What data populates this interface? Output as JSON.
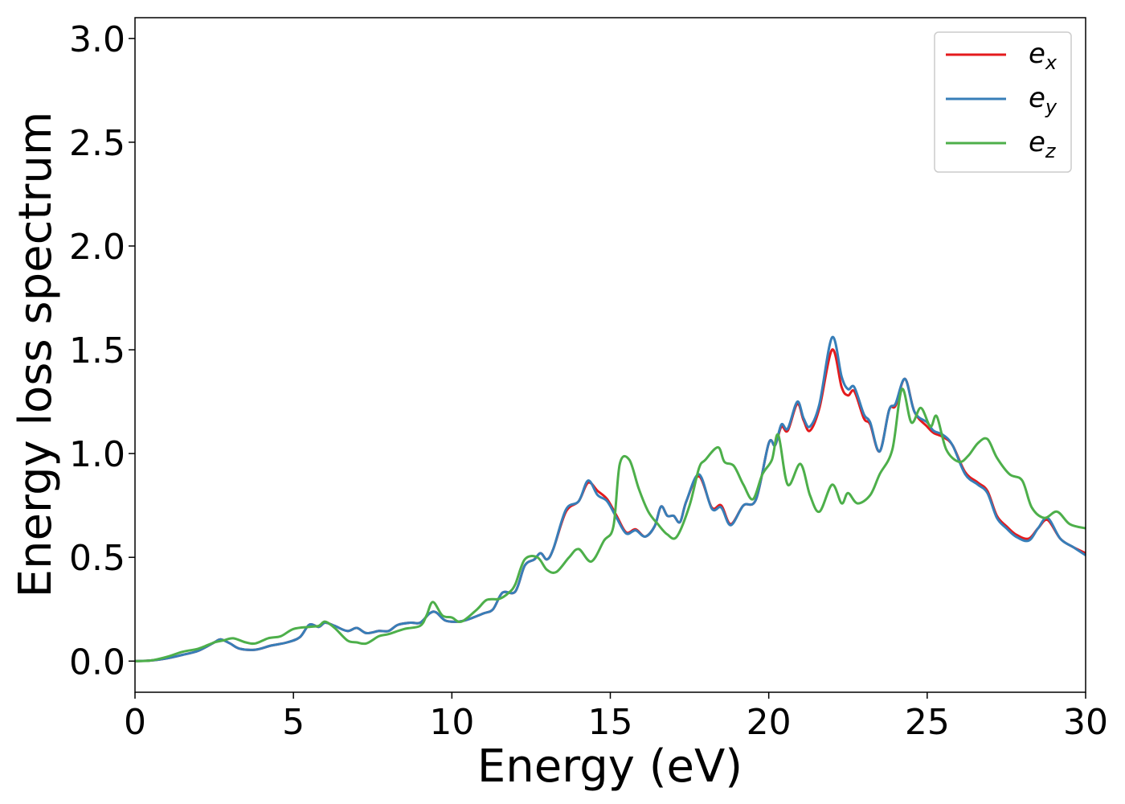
{
  "chart_data": {
    "type": "line",
    "title": "",
    "xlabel": "Energy (eV)",
    "ylabel": "Energy loss spectrum",
    "xlim": [
      0,
      30
    ],
    "ylim": [
      -0.15,
      3.1
    ],
    "xticks": [
      0,
      5,
      10,
      15,
      20,
      25,
      30
    ],
    "xtick_labels": [
      "0",
      "5",
      "10",
      "15",
      "20",
      "25",
      "30"
    ],
    "yticks": [
      0.0,
      0.5,
      1.0,
      1.5,
      2.0,
      2.5,
      3.0
    ],
    "ytick_labels": [
      "0.0",
      "0.5",
      "1.0",
      "1.5",
      "2.0",
      "2.5",
      "3.0"
    ],
    "grid": false,
    "legend_position": "top-right",
    "series": [
      {
        "name": "e_x",
        "label_base": "e",
        "label_sub": "x",
        "color": "#e41a1c",
        "points": [
          [
            0,
            0
          ],
          [
            0.5,
            0.003
          ],
          [
            1,
            0.013
          ],
          [
            1.5,
            0.03
          ],
          [
            2,
            0.05
          ],
          [
            2.5,
            0.09
          ],
          [
            2.7,
            0.105
          ],
          [
            3,
            0.085
          ],
          [
            3.3,
            0.06
          ],
          [
            3.8,
            0.055
          ],
          [
            4.3,
            0.075
          ],
          [
            4.8,
            0.09
          ],
          [
            5.2,
            0.115
          ],
          [
            5.5,
            0.175
          ],
          [
            5.8,
            0.165
          ],
          [
            6,
            0.185
          ],
          [
            6.3,
            0.17
          ],
          [
            6.7,
            0.145
          ],
          [
            7,
            0.16
          ],
          [
            7.3,
            0.135
          ],
          [
            7.7,
            0.145
          ],
          [
            8,
            0.145
          ],
          [
            8.3,
            0.175
          ],
          [
            8.7,
            0.185
          ],
          [
            9,
            0.185
          ],
          [
            9.3,
            0.23
          ],
          [
            9.5,
            0.235
          ],
          [
            9.8,
            0.195
          ],
          [
            10.2,
            0.19
          ],
          [
            10.5,
            0.2
          ],
          [
            11,
            0.23
          ],
          [
            11.3,
            0.25
          ],
          [
            11.6,
            0.33
          ],
          [
            12,
            0.335
          ],
          [
            12.3,
            0.46
          ],
          [
            12.6,
            0.49
          ],
          [
            12.8,
            0.52
          ],
          [
            13,
            0.49
          ],
          [
            13.2,
            0.54
          ],
          [
            13.6,
            0.72
          ],
          [
            14,
            0.77
          ],
          [
            14.3,
            0.86
          ],
          [
            14.6,
            0.82
          ],
          [
            14.9,
            0.78
          ],
          [
            15.2,
            0.7
          ],
          [
            15.5,
            0.62
          ],
          [
            15.8,
            0.635
          ],
          [
            16.1,
            0.6
          ],
          [
            16.4,
            0.65
          ],
          [
            16.6,
            0.745
          ],
          [
            16.8,
            0.7
          ],
          [
            17,
            0.7
          ],
          [
            17.2,
            0.67
          ],
          [
            17.4,
            0.77
          ],
          [
            17.8,
            0.89
          ],
          [
            18.2,
            0.74
          ],
          [
            18.5,
            0.75
          ],
          [
            18.8,
            0.66
          ],
          [
            19.2,
            0.75
          ],
          [
            19.6,
            0.78
          ],
          [
            20,
            1.05
          ],
          [
            20.2,
            1.04
          ],
          [
            20.4,
            1.13
          ],
          [
            20.6,
            1.11
          ],
          [
            20.9,
            1.24
          ],
          [
            21.1,
            1.16
          ],
          [
            21.3,
            1.11
          ],
          [
            21.6,
            1.22
          ],
          [
            22,
            1.5
          ],
          [
            22.3,
            1.32
          ],
          [
            22.5,
            1.28
          ],
          [
            22.7,
            1.3
          ],
          [
            23,
            1.17
          ],
          [
            23.2,
            1.14
          ],
          [
            23.5,
            1.01
          ],
          [
            23.8,
            1.21
          ],
          [
            24,
            1.23
          ],
          [
            24.3,
            1.36
          ],
          [
            24.6,
            1.2
          ],
          [
            25,
            1.13
          ],
          [
            25.2,
            1.1
          ],
          [
            25.5,
            1.08
          ],
          [
            25.8,
            1.04
          ],
          [
            26.2,
            0.91
          ],
          [
            26.6,
            0.86
          ],
          [
            26.9,
            0.82
          ],
          [
            27.2,
            0.7
          ],
          [
            27.5,
            0.65
          ],
          [
            27.8,
            0.61
          ],
          [
            28.2,
            0.59
          ],
          [
            28.5,
            0.64
          ],
          [
            28.8,
            0.68
          ],
          [
            29.2,
            0.59
          ],
          [
            29.6,
            0.55
          ],
          [
            30,
            0.52
          ]
        ]
      },
      {
        "name": "e_y",
        "label_base": "e",
        "label_sub": "y",
        "color": "#377eb8",
        "points": [
          [
            0,
            0
          ],
          [
            0.5,
            0.003
          ],
          [
            1,
            0.013
          ],
          [
            1.5,
            0.03
          ],
          [
            2,
            0.05
          ],
          [
            2.5,
            0.09
          ],
          [
            2.7,
            0.105
          ],
          [
            3,
            0.085
          ],
          [
            3.3,
            0.06
          ],
          [
            3.8,
            0.055
          ],
          [
            4.3,
            0.075
          ],
          [
            4.8,
            0.09
          ],
          [
            5.2,
            0.115
          ],
          [
            5.5,
            0.175
          ],
          [
            5.8,
            0.165
          ],
          [
            6,
            0.185
          ],
          [
            6.3,
            0.17
          ],
          [
            6.7,
            0.145
          ],
          [
            7,
            0.16
          ],
          [
            7.3,
            0.135
          ],
          [
            7.7,
            0.145
          ],
          [
            8,
            0.145
          ],
          [
            8.3,
            0.175
          ],
          [
            8.7,
            0.185
          ],
          [
            9,
            0.185
          ],
          [
            9.3,
            0.23
          ],
          [
            9.5,
            0.235
          ],
          [
            9.8,
            0.195
          ],
          [
            10.2,
            0.19
          ],
          [
            10.5,
            0.2
          ],
          [
            11,
            0.23
          ],
          [
            11.3,
            0.25
          ],
          [
            11.6,
            0.33
          ],
          [
            12,
            0.335
          ],
          [
            12.3,
            0.46
          ],
          [
            12.6,
            0.49
          ],
          [
            12.8,
            0.52
          ],
          [
            13,
            0.49
          ],
          [
            13.2,
            0.54
          ],
          [
            13.6,
            0.73
          ],
          [
            14,
            0.77
          ],
          [
            14.3,
            0.87
          ],
          [
            14.6,
            0.8
          ],
          [
            14.9,
            0.77
          ],
          [
            15.2,
            0.69
          ],
          [
            15.5,
            0.615
          ],
          [
            15.8,
            0.63
          ],
          [
            16.1,
            0.6
          ],
          [
            16.4,
            0.65
          ],
          [
            16.6,
            0.745
          ],
          [
            16.8,
            0.7
          ],
          [
            17,
            0.7
          ],
          [
            17.2,
            0.67
          ],
          [
            17.4,
            0.77
          ],
          [
            17.8,
            0.9
          ],
          [
            18.2,
            0.735
          ],
          [
            18.5,
            0.74
          ],
          [
            18.8,
            0.655
          ],
          [
            19.2,
            0.75
          ],
          [
            19.6,
            0.78
          ],
          [
            20,
            1.05
          ],
          [
            20.2,
            1.04
          ],
          [
            20.4,
            1.14
          ],
          [
            20.6,
            1.12
          ],
          [
            20.9,
            1.25
          ],
          [
            21.1,
            1.17
          ],
          [
            21.3,
            1.13
          ],
          [
            21.6,
            1.24
          ],
          [
            22,
            1.56
          ],
          [
            22.3,
            1.37
          ],
          [
            22.5,
            1.31
          ],
          [
            22.7,
            1.32
          ],
          [
            23,
            1.19
          ],
          [
            23.2,
            1.15
          ],
          [
            23.5,
            1.01
          ],
          [
            23.8,
            1.21
          ],
          [
            24,
            1.24
          ],
          [
            24.3,
            1.36
          ],
          [
            24.6,
            1.2
          ],
          [
            25,
            1.15
          ],
          [
            25.2,
            1.11
          ],
          [
            25.5,
            1.09
          ],
          [
            25.8,
            1.04
          ],
          [
            26.2,
            0.9
          ],
          [
            26.6,
            0.85
          ],
          [
            26.9,
            0.81
          ],
          [
            27.2,
            0.69
          ],
          [
            27.5,
            0.64
          ],
          [
            27.8,
            0.6
          ],
          [
            28.2,
            0.58
          ],
          [
            28.5,
            0.64
          ],
          [
            28.8,
            0.69
          ],
          [
            29.2,
            0.59
          ],
          [
            29.6,
            0.55
          ],
          [
            30,
            0.51
          ]
        ]
      },
      {
        "name": "e_z",
        "label_base": "e",
        "label_sub": "z",
        "color": "#4daf4a",
        "points": [
          [
            0,
            0
          ],
          [
            0.5,
            0.003
          ],
          [
            1,
            0.02
          ],
          [
            1.5,
            0.045
          ],
          [
            2,
            0.06
          ],
          [
            2.5,
            0.09
          ],
          [
            2.8,
            0.1
          ],
          [
            3.1,
            0.11
          ],
          [
            3.5,
            0.09
          ],
          [
            3.8,
            0.085
          ],
          [
            4.2,
            0.11
          ],
          [
            4.6,
            0.12
          ],
          [
            5,
            0.155
          ],
          [
            5.5,
            0.165
          ],
          [
            5.8,
            0.17
          ],
          [
            6,
            0.19
          ],
          [
            6.3,
            0.16
          ],
          [
            6.7,
            0.1
          ],
          [
            7,
            0.09
          ],
          [
            7.3,
            0.085
          ],
          [
            7.7,
            0.12
          ],
          [
            8,
            0.13
          ],
          [
            8.5,
            0.155
          ],
          [
            9,
            0.17
          ],
          [
            9.2,
            0.22
          ],
          [
            9.4,
            0.285
          ],
          [
            9.7,
            0.22
          ],
          [
            10,
            0.21
          ],
          [
            10.3,
            0.19
          ],
          [
            10.8,
            0.25
          ],
          [
            11.1,
            0.295
          ],
          [
            11.5,
            0.3
          ],
          [
            11.8,
            0.33
          ],
          [
            12,
            0.37
          ],
          [
            12.3,
            0.49
          ],
          [
            12.7,
            0.5
          ],
          [
            13,
            0.44
          ],
          [
            13.3,
            0.43
          ],
          [
            13.7,
            0.5
          ],
          [
            14,
            0.54
          ],
          [
            14.4,
            0.48
          ],
          [
            14.8,
            0.58
          ],
          [
            15.1,
            0.65
          ],
          [
            15.3,
            0.95
          ],
          [
            15.6,
            0.97
          ],
          [
            15.9,
            0.83
          ],
          [
            16.2,
            0.72
          ],
          [
            16.5,
            0.66
          ],
          [
            16.8,
            0.61
          ],
          [
            17.1,
            0.6
          ],
          [
            17.5,
            0.75
          ],
          [
            17.8,
            0.93
          ],
          [
            18,
            0.97
          ],
          [
            18.4,
            1.03
          ],
          [
            18.6,
            0.96
          ],
          [
            18.9,
            0.94
          ],
          [
            19.2,
            0.85
          ],
          [
            19.5,
            0.78
          ],
          [
            19.8,
            0.9
          ],
          [
            20.1,
            0.97
          ],
          [
            20.3,
            1.09
          ],
          [
            20.6,
            0.85
          ],
          [
            21,
            0.95
          ],
          [
            21.3,
            0.8
          ],
          [
            21.6,
            0.72
          ],
          [
            22,
            0.85
          ],
          [
            22.3,
            0.76
          ],
          [
            22.5,
            0.81
          ],
          [
            22.8,
            0.76
          ],
          [
            23.2,
            0.8
          ],
          [
            23.5,
            0.9
          ],
          [
            23.9,
            1.02
          ],
          [
            24.2,
            1.31
          ],
          [
            24.5,
            1.15
          ],
          [
            24.8,
            1.22
          ],
          [
            25.1,
            1.13
          ],
          [
            25.3,
            1.18
          ],
          [
            25.6,
            1.02
          ],
          [
            26,
            0.96
          ],
          [
            26.3,
            0.99
          ],
          [
            26.6,
            1.05
          ],
          [
            26.9,
            1.07
          ],
          [
            27.2,
            0.98
          ],
          [
            27.6,
            0.9
          ],
          [
            28,
            0.87
          ],
          [
            28.3,
            0.74
          ],
          [
            28.7,
            0.69
          ],
          [
            29.1,
            0.72
          ],
          [
            29.5,
            0.66
          ],
          [
            30,
            0.64
          ]
        ]
      }
    ]
  }
}
